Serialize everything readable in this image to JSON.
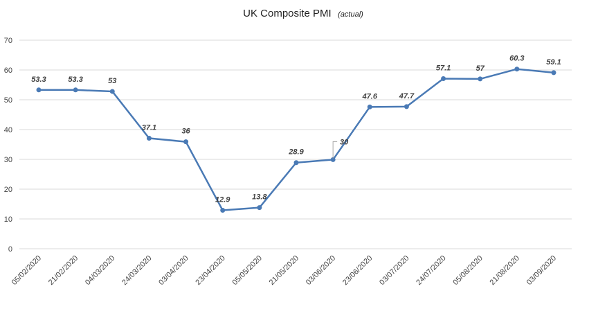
{
  "chart_data": {
    "type": "line",
    "title": "UK Composite PMI",
    "subtitle": "(actual)",
    "xlabel": "",
    "ylabel": "",
    "ylim": [
      0,
      70
    ],
    "yticks": [
      0,
      10,
      20,
      30,
      40,
      50,
      60,
      70
    ],
    "grid": true,
    "legend": "none",
    "categories": [
      "05/02/2020",
      "21/02/2020",
      "04/03/2020",
      "24/03/2020",
      "03/04/2020",
      "23/04/2020",
      "05/05/2020",
      "21/05/2020",
      "03/06/2020",
      "23/06/2020",
      "03/07/2020",
      "24/07/2020",
      "05/08/2020",
      "21/08/2020",
      "03/09/2020"
    ],
    "values": [
      53.3,
      53.3,
      52.8,
      37.1,
      35.9,
      12.9,
      13.8,
      28.9,
      29.9,
      47.6,
      47.7,
      57.1,
      57.0,
      60.3,
      59.1
    ],
    "data_labels": [
      "53.3",
      "53.3",
      "53",
      "37.1",
      "36",
      "12.9",
      "13.8",
      "28.9",
      "30",
      "47.6",
      "47.7",
      "57.1",
      "57",
      "60.3",
      "59.1"
    ],
    "series_color": "#4a7ab5"
  }
}
